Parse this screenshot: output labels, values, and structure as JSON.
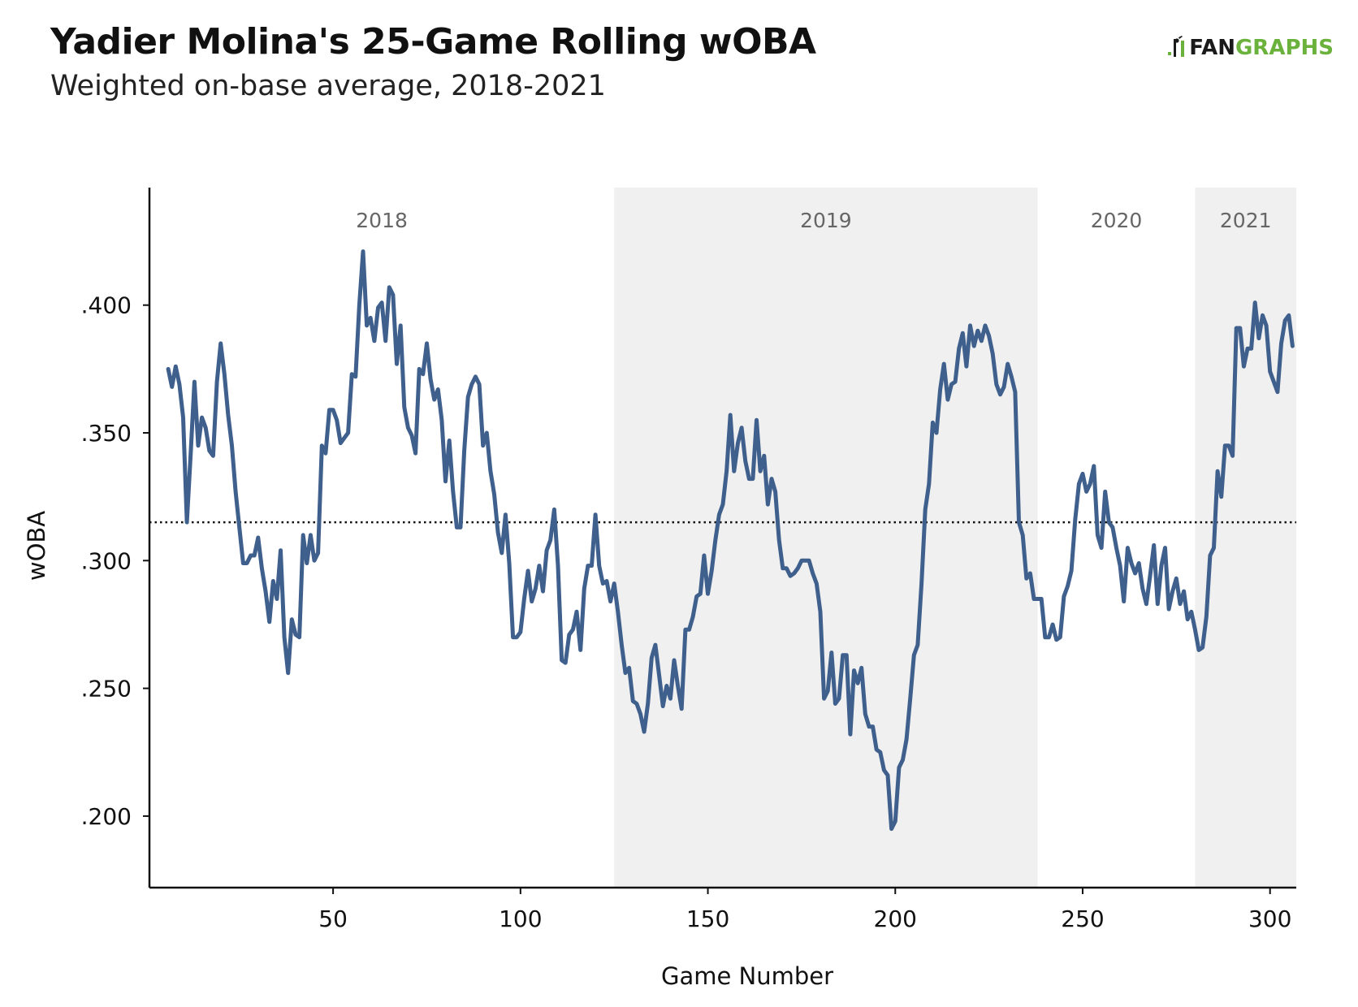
{
  "header": {
    "title": "Yadier Molina's 25-Game Rolling wOBA",
    "subtitle": "Weighted on-base average, 2018-2021"
  },
  "logo": {
    "fan": "FAN",
    "graphs": "GRAPHS"
  },
  "colors": {
    "line": "#3f5f8c",
    "band": "#f0f0f0",
    "brand_green": "#6bb23c",
    "year_label": "#666666"
  },
  "chart_data": {
    "type": "line",
    "title": "Yadier Molina's 25-Game Rolling wOBA",
    "subtitle": "Weighted on-base average, 2018-2021",
    "xlabel": "Game Number",
    "ylabel": "wOBA",
    "xlim": [
      1,
      307
    ],
    "ylim": [
      0.172,
      0.446
    ],
    "x_ticks": [
      50,
      100,
      150,
      200,
      250,
      300
    ],
    "x_tick_labels": [
      "50",
      "100",
      "150",
      "200",
      "250",
      "300"
    ],
    "y_ticks": [
      0.2,
      0.25,
      0.3,
      0.35,
      0.4
    ],
    "y_tick_labels": [
      ".200",
      ".250",
      ".300",
      ".350",
      ".400"
    ],
    "reference_line": {
      "y": 0.315,
      "style": "dotted"
    },
    "year_bands": [
      {
        "label": "2018",
        "start": 1,
        "end": 125,
        "shaded": false
      },
      {
        "label": "2019",
        "start": 125,
        "end": 238,
        "shaded": true
      },
      {
        "label": "2020",
        "start": 238,
        "end": 280,
        "shaded": false
      },
      {
        "label": "2021",
        "start": 280,
        "end": 307,
        "shaded": true
      }
    ],
    "grid": false,
    "series": [
      {
        "points": [
          [
            6,
            0.375
          ],
          [
            7,
            0.368
          ],
          [
            8,
            0.376
          ],
          [
            9,
            0.369
          ],
          [
            10,
            0.356
          ],
          [
            11,
            0.315
          ],
          [
            12,
            0.342
          ],
          [
            13,
            0.37
          ],
          [
            14,
            0.345
          ],
          [
            15,
            0.356
          ],
          [
            16,
            0.352
          ],
          [
            17,
            0.343
          ],
          [
            18,
            0.341
          ],
          [
            19,
            0.37
          ],
          [
            20,
            0.385
          ],
          [
            21,
            0.373
          ],
          [
            22,
            0.357
          ],
          [
            23,
            0.345
          ],
          [
            24,
            0.327
          ],
          [
            25,
            0.313
          ],
          [
            26,
            0.299
          ],
          [
            27,
            0.299
          ],
          [
            28,
            0.302
          ],
          [
            29,
            0.302
          ],
          [
            30,
            0.309
          ],
          [
            31,
            0.297
          ],
          [
            32,
            0.288
          ],
          [
            33,
            0.276
          ],
          [
            34,
            0.292
          ],
          [
            35,
            0.285
          ],
          [
            36,
            0.304
          ],
          [
            37,
            0.27
          ],
          [
            38,
            0.256
          ],
          [
            39,
            0.277
          ],
          [
            40,
            0.271
          ],
          [
            41,
            0.27
          ],
          [
            42,
            0.31
          ],
          [
            43,
            0.299
          ],
          [
            44,
            0.31
          ],
          [
            45,
            0.3
          ],
          [
            46,
            0.303
          ],
          [
            47,
            0.345
          ],
          [
            48,
            0.342
          ],
          [
            49,
            0.359
          ],
          [
            50,
            0.359
          ],
          [
            51,
            0.355
          ],
          [
            52,
            0.346
          ],
          [
            53,
            0.348
          ],
          [
            54,
            0.35
          ],
          [
            55,
            0.373
          ],
          [
            56,
            0.372
          ],
          [
            57,
            0.4
          ],
          [
            58,
            0.421
          ],
          [
            59,
            0.392
          ],
          [
            60,
            0.395
          ],
          [
            61,
            0.386
          ],
          [
            62,
            0.399
          ],
          [
            63,
            0.401
          ],
          [
            64,
            0.386
          ],
          [
            65,
            0.407
          ],
          [
            66,
            0.404
          ],
          [
            67,
            0.377
          ],
          [
            68,
            0.392
          ],
          [
            69,
            0.36
          ],
          [
            70,
            0.352
          ],
          [
            71,
            0.349
          ],
          [
            72,
            0.342
          ],
          [
            73,
            0.375
          ],
          [
            74,
            0.373
          ],
          [
            75,
            0.385
          ],
          [
            76,
            0.371
          ],
          [
            77,
            0.363
          ],
          [
            78,
            0.367
          ],
          [
            79,
            0.355
          ],
          [
            80,
            0.331
          ],
          [
            81,
            0.347
          ],
          [
            82,
            0.327
          ],
          [
            83,
            0.313
          ],
          [
            84,
            0.313
          ],
          [
            85,
            0.343
          ],
          [
            86,
            0.364
          ],
          [
            87,
            0.369
          ],
          [
            88,
            0.372
          ],
          [
            89,
            0.369
          ],
          [
            90,
            0.345
          ],
          [
            91,
            0.35
          ],
          [
            92,
            0.335
          ],
          [
            93,
            0.326
          ],
          [
            94,
            0.311
          ],
          [
            95,
            0.303
          ],
          [
            96,
            0.318
          ],
          [
            97,
            0.299
          ],
          [
            98,
            0.27
          ],
          [
            99,
            0.27
          ],
          [
            100,
            0.272
          ],
          [
            101,
            0.285
          ],
          [
            102,
            0.296
          ],
          [
            103,
            0.284
          ],
          [
            104,
            0.289
          ],
          [
            105,
            0.298
          ],
          [
            106,
            0.288
          ],
          [
            107,
            0.304
          ],
          [
            108,
            0.308
          ],
          [
            109,
            0.32
          ],
          [
            110,
            0.298
          ],
          [
            111,
            0.261
          ],
          [
            112,
            0.26
          ],
          [
            113,
            0.271
          ],
          [
            114,
            0.273
          ],
          [
            115,
            0.28
          ],
          [
            116,
            0.265
          ],
          [
            117,
            0.289
          ],
          [
            118,
            0.298
          ],
          [
            119,
            0.298
          ],
          [
            120,
            0.318
          ],
          [
            121,
            0.298
          ],
          [
            122,
            0.291
          ],
          [
            123,
            0.292
          ],
          [
            124,
            0.284
          ],
          [
            125,
            0.291
          ],
          [
            126,
            0.28
          ],
          [
            127,
            0.267
          ],
          [
            128,
            0.256
          ],
          [
            129,
            0.258
          ],
          [
            130,
            0.245
          ],
          [
            131,
            0.244
          ],
          [
            132,
            0.24
          ],
          [
            133,
            0.233
          ],
          [
            134,
            0.244
          ],
          [
            135,
            0.262
          ],
          [
            136,
            0.267
          ],
          [
            137,
            0.255
          ],
          [
            138,
            0.243
          ],
          [
            139,
            0.251
          ],
          [
            140,
            0.246
          ],
          [
            141,
            0.261
          ],
          [
            142,
            0.251
          ],
          [
            143,
            0.242
          ],
          [
            144,
            0.273
          ],
          [
            145,
            0.273
          ],
          [
            146,
            0.278
          ],
          [
            147,
            0.286
          ],
          [
            148,
            0.287
          ],
          [
            149,
            0.302
          ],
          [
            150,
            0.287
          ],
          [
            151,
            0.296
          ],
          [
            152,
            0.308
          ],
          [
            153,
            0.318
          ],
          [
            154,
            0.322
          ],
          [
            155,
            0.335
          ],
          [
            156,
            0.357
          ],
          [
            157,
            0.335
          ],
          [
            158,
            0.346
          ],
          [
            159,
            0.352
          ],
          [
            160,
            0.339
          ],
          [
            161,
            0.332
          ],
          [
            162,
            0.332
          ],
          [
            163,
            0.355
          ],
          [
            164,
            0.335
          ],
          [
            165,
            0.341
          ],
          [
            166,
            0.322
          ],
          [
            167,
            0.332
          ],
          [
            168,
            0.327
          ],
          [
            169,
            0.308
          ],
          [
            170,
            0.297
          ],
          [
            171,
            0.297
          ],
          [
            172,
            0.294
          ],
          [
            173,
            0.295
          ],
          [
            174,
            0.297
          ],
          [
            175,
            0.3
          ],
          [
            176,
            0.3
          ],
          [
            177,
            0.3
          ],
          [
            178,
            0.295
          ],
          [
            179,
            0.291
          ],
          [
            180,
            0.28
          ],
          [
            181,
            0.246
          ],
          [
            182,
            0.249
          ],
          [
            183,
            0.264
          ],
          [
            184,
            0.244
          ],
          [
            185,
            0.246
          ],
          [
            186,
            0.263
          ],
          [
            187,
            0.263
          ],
          [
            188,
            0.232
          ],
          [
            189,
            0.257
          ],
          [
            190,
            0.252
          ],
          [
            191,
            0.258
          ],
          [
            192,
            0.24
          ],
          [
            193,
            0.235
          ],
          [
            194,
            0.235
          ],
          [
            195,
            0.226
          ],
          [
            196,
            0.225
          ],
          [
            197,
            0.218
          ],
          [
            198,
            0.216
          ],
          [
            199,
            0.195
          ],
          [
            200,
            0.198
          ],
          [
            201,
            0.219
          ],
          [
            202,
            0.222
          ],
          [
            203,
            0.23
          ],
          [
            204,
            0.246
          ],
          [
            205,
            0.263
          ],
          [
            206,
            0.267
          ],
          [
            207,
            0.291
          ],
          [
            208,
            0.32
          ],
          [
            209,
            0.33
          ],
          [
            210,
            0.354
          ],
          [
            211,
            0.35
          ],
          [
            212,
            0.367
          ],
          [
            213,
            0.377
          ],
          [
            214,
            0.363
          ],
          [
            215,
            0.369
          ],
          [
            216,
            0.37
          ],
          [
            217,
            0.383
          ],
          [
            218,
            0.389
          ],
          [
            219,
            0.376
          ],
          [
            220,
            0.392
          ],
          [
            221,
            0.384
          ],
          [
            222,
            0.39
          ],
          [
            223,
            0.386
          ],
          [
            224,
            0.392
          ],
          [
            225,
            0.388
          ],
          [
            226,
            0.381
          ],
          [
            227,
            0.369
          ],
          [
            228,
            0.365
          ],
          [
            229,
            0.368
          ],
          [
            230,
            0.377
          ],
          [
            231,
            0.372
          ],
          [
            232,
            0.366
          ],
          [
            233,
            0.315
          ],
          [
            234,
            0.31
          ],
          [
            235,
            0.293
          ],
          [
            236,
            0.295
          ],
          [
            237,
            0.285
          ],
          [
            238,
            0.285
          ],
          [
            239,
            0.285
          ],
          [
            240,
            0.27
          ],
          [
            241,
            0.27
          ],
          [
            242,
            0.275
          ],
          [
            243,
            0.269
          ],
          [
            244,
            0.27
          ],
          [
            245,
            0.286
          ],
          [
            246,
            0.29
          ],
          [
            247,
            0.296
          ],
          [
            248,
            0.316
          ],
          [
            249,
            0.33
          ],
          [
            250,
            0.334
          ],
          [
            251,
            0.327
          ],
          [
            252,
            0.33
          ],
          [
            253,
            0.337
          ],
          [
            254,
            0.31
          ],
          [
            255,
            0.305
          ],
          [
            256,
            0.327
          ],
          [
            257,
            0.315
          ],
          [
            258,
            0.313
          ],
          [
            259,
            0.305
          ],
          [
            260,
            0.298
          ],
          [
            261,
            0.284
          ],
          [
            262,
            0.305
          ],
          [
            263,
            0.299
          ],
          [
            264,
            0.295
          ],
          [
            265,
            0.299
          ],
          [
            266,
            0.289
          ],
          [
            267,
            0.283
          ],
          [
            268,
            0.294
          ],
          [
            269,
            0.306
          ],
          [
            270,
            0.283
          ],
          [
            271,
            0.298
          ],
          [
            272,
            0.305
          ],
          [
            273,
            0.281
          ],
          [
            274,
            0.288
          ],
          [
            275,
            0.293
          ],
          [
            276,
            0.283
          ],
          [
            277,
            0.288
          ],
          [
            278,
            0.277
          ],
          [
            279,
            0.28
          ],
          [
            280,
            0.273
          ],
          [
            281,
            0.265
          ],
          [
            282,
            0.266
          ],
          [
            283,
            0.278
          ],
          [
            284,
            0.302
          ],
          [
            285,
            0.305
          ],
          [
            286,
            0.335
          ],
          [
            287,
            0.325
          ],
          [
            288,
            0.345
          ],
          [
            289,
            0.345
          ],
          [
            290,
            0.341
          ],
          [
            291,
            0.391
          ],
          [
            292,
            0.391
          ],
          [
            293,
            0.376
          ],
          [
            294,
            0.383
          ],
          [
            295,
            0.383
          ],
          [
            296,
            0.401
          ],
          [
            297,
            0.387
          ],
          [
            298,
            0.396
          ],
          [
            299,
            0.392
          ],
          [
            300,
            0.374
          ],
          [
            301,
            0.37
          ],
          [
            302,
            0.366
          ],
          [
            303,
            0.385
          ],
          [
            304,
            0.394
          ],
          [
            305,
            0.396
          ],
          [
            306,
            0.384
          ]
        ]
      }
    ]
  }
}
